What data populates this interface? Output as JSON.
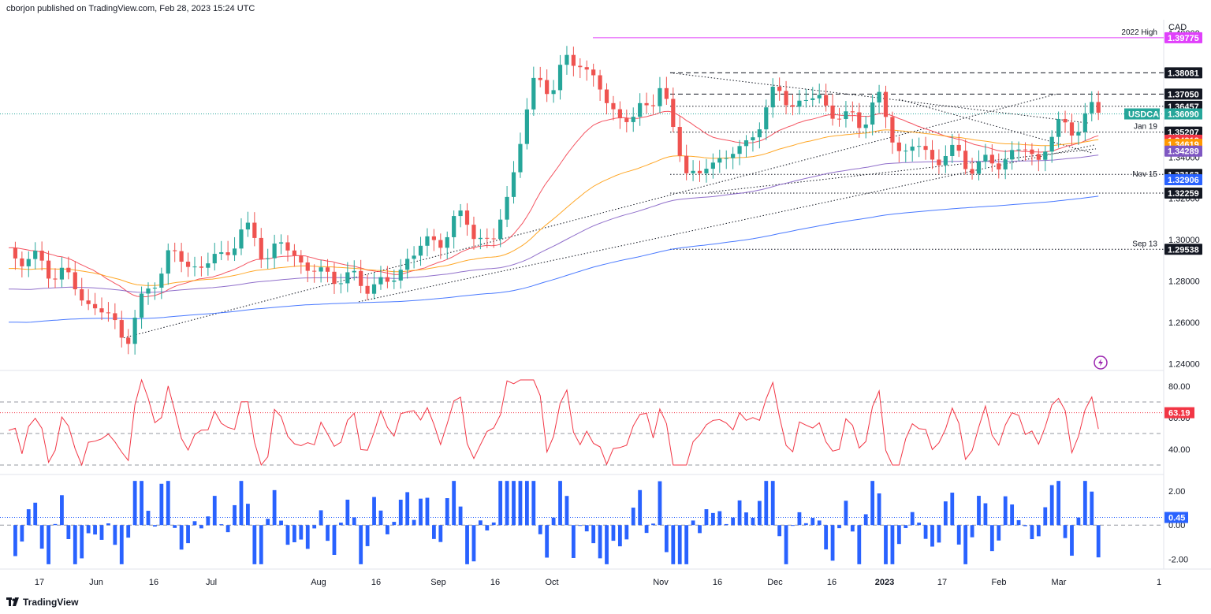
{
  "header": {
    "publisher": "cborjon published on TradingView.com, Feb 28, 2023 15:24 UTC"
  },
  "brand": {
    "name": "TradingView"
  },
  "chart_data": {
    "type": "candlestick",
    "currency": "CAD",
    "symbol": "USDCAD",
    "last_price": "1.36090",
    "colors": {
      "up": "#26a69a",
      "down": "#ef5350",
      "rsi": "#f23645",
      "macd": "#2962ff",
      "high_line": "#e040fb",
      "ema20": "#f23645",
      "ema50": "#ff9800",
      "ema100": "#7e57c2",
      "ema200": "#2962ff"
    },
    "x_labels": [
      "17",
      "Jun",
      "16",
      "Jul",
      "Aug",
      "16",
      "Sep",
      "16",
      "Oct",
      "Nov",
      "16",
      "Dec",
      "16",
      "2023",
      "17",
      "Feb",
      "Mar",
      "1"
    ],
    "y_labels": [
      "1.40000",
      "1.38000",
      "1.36000",
      "1.34000",
      "1.32000",
      "1.30000",
      "1.28000",
      "1.26000",
      "1.24000"
    ],
    "y_range": [
      1.2375,
      1.4065
    ],
    "price_levels": [
      {
        "value": "1.39775",
        "label": "2022 High",
        "color": "#e040fb",
        "bg": "#e040fb",
        "style": "solid"
      },
      {
        "value": "1.38081",
        "label": "",
        "color": "#131722",
        "bg": "#131722",
        "style": "dashed"
      },
      {
        "value": "1.37050",
        "label": "",
        "color": "#131722",
        "bg": "#131722",
        "style": "dashed"
      },
      {
        "value": "1.36457",
        "label": "",
        "color": "#131722",
        "bg": "#131722",
        "style": "dotted"
      },
      {
        "value": "1.35207",
        "label": "Jan 19",
        "color": "#131722",
        "bg": "#131722",
        "style": "dotted"
      },
      {
        "value": "1.34818",
        "label": "",
        "color": "#f23645",
        "bg": "#f23645",
        "style": "none"
      },
      {
        "value": "1.34619",
        "label": "",
        "color": "#ff9800",
        "bg": "#ff9800",
        "style": "none"
      },
      {
        "value": "1.34289",
        "label": "",
        "color": "#7e57c2",
        "bg": "#7e57c2",
        "style": "none"
      },
      {
        "value": "1.33163",
        "label": "",
        "color": "#131722",
        "bg": "#131722",
        "style": "dotted"
      },
      {
        "value": "1.32906",
        "label": "Nov 15",
        "color": "#2962ff",
        "bg": "#2962ff",
        "style": "none"
      },
      {
        "value": "1.32259",
        "label": "",
        "color": "#131722",
        "bg": "#131722",
        "style": "dotted"
      },
      {
        "value": "1.29538",
        "label": "Sep 13",
        "color": "#131722",
        "bg": "#131722",
        "style": "dotted"
      }
    ],
    "rsi": {
      "y_labels": [
        "80.00",
        "60.00",
        "40.00"
      ],
      "last": "63.19",
      "y_range": [
        26,
        86
      ],
      "levels": [
        70,
        50,
        30
      ]
    },
    "macd": {
      "y_labels": [
        "2.00",
        "0.00",
        "-2.00"
      ],
      "last": "0.45",
      "y_range": [
        -2.4,
        2.7
      ]
    }
  }
}
